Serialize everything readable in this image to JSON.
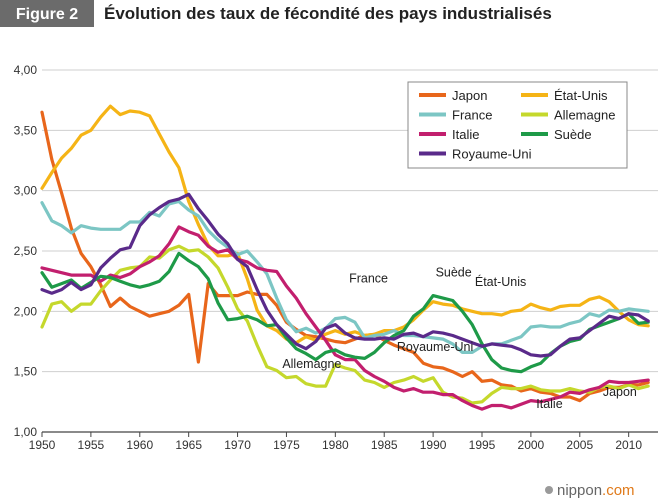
{
  "header": {
    "badge": "Figure 2",
    "title": "Évolution des taux de fécondité des pays industrialisés"
  },
  "source": {
    "logo": "nippon.com",
    "logo_main": "nippon",
    "logo_suffix": ".com"
  },
  "chart_data": {
    "type": "line",
    "title": "Évolution des taux de fécondité des pays industrialisés",
    "xlabel": "",
    "ylabel": "",
    "xlim": [
      1950,
      2013
    ],
    "ylim": [
      1.0,
      4.0
    ],
    "x_ticks": [
      1950,
      1955,
      1960,
      1965,
      1970,
      1975,
      1980,
      1985,
      1990,
      1995,
      2000,
      2005,
      2010
    ],
    "y_ticks": [
      "1,00",
      "1,50",
      "2,00",
      "2,50",
      "3,00",
      "3,50",
      "4,00"
    ],
    "grid": "horizontal",
    "legend_position": "top-right",
    "series": [
      {
        "name": "Japon",
        "color": "#e8661b",
        "x": [
          1950,
          1951,
          1952,
          1953,
          1954,
          1955,
          1956,
          1957,
          1958,
          1959,
          1960,
          1961,
          1962,
          1963,
          1964,
          1965,
          1966,
          1967,
          1968,
          1969,
          1970,
          1971,
          1972,
          1973,
          1974,
          1975,
          1976,
          1977,
          1978,
          1979,
          1980,
          1981,
          1982,
          1983,
          1984,
          1985,
          1986,
          1987,
          1988,
          1989,
          1990,
          1991,
          1992,
          1993,
          1994,
          1995,
          1996,
          1997,
          1998,
          1999,
          2000,
          2001,
          2002,
          2003,
          2004,
          2005,
          2006,
          2007,
          2008,
          2009,
          2010,
          2011,
          2012
        ],
        "y": [
          3.65,
          3.26,
          2.98,
          2.69,
          2.48,
          2.37,
          2.22,
          2.04,
          2.11,
          2.04,
          2.0,
          1.96,
          1.98,
          2.0,
          2.05,
          2.14,
          1.58,
          2.23,
          2.13,
          2.13,
          2.13,
          2.16,
          2.14,
          2.14,
          2.05,
          1.91,
          1.85,
          1.8,
          1.79,
          1.77,
          1.75,
          1.74,
          1.77,
          1.8,
          1.81,
          1.76,
          1.72,
          1.69,
          1.66,
          1.57,
          1.54,
          1.53,
          1.5,
          1.46,
          1.5,
          1.42,
          1.43,
          1.39,
          1.38,
          1.34,
          1.36,
          1.33,
          1.32,
          1.29,
          1.29,
          1.26,
          1.32,
          1.34,
          1.37,
          1.37,
          1.39,
          1.39,
          1.41
        ]
      },
      {
        "name": "État-Unis",
        "color": "#f5b416",
        "x": [
          1950,
          1951,
          1952,
          1953,
          1954,
          1955,
          1956,
          1957,
          1958,
          1959,
          1960,
          1961,
          1962,
          1963,
          1964,
          1965,
          1966,
          1967,
          1968,
          1969,
          1970,
          1971,
          1972,
          1973,
          1974,
          1975,
          1976,
          1977,
          1978,
          1979,
          1980,
          1981,
          1982,
          1983,
          1984,
          1985,
          1986,
          1987,
          1988,
          1989,
          1990,
          1991,
          1992,
          1993,
          1994,
          1995,
          1996,
          1997,
          1998,
          1999,
          2000,
          2001,
          2002,
          2003,
          2004,
          2005,
          2006,
          2007,
          2008,
          2009,
          2010,
          2011,
          2012
        ],
        "y": [
          3.02,
          3.15,
          3.27,
          3.35,
          3.46,
          3.5,
          3.61,
          3.7,
          3.63,
          3.66,
          3.65,
          3.62,
          3.47,
          3.32,
          3.19,
          2.91,
          2.72,
          2.55,
          2.46,
          2.46,
          2.48,
          2.27,
          2.01,
          1.88,
          1.84,
          1.77,
          1.74,
          1.79,
          1.76,
          1.81,
          1.84,
          1.81,
          1.83,
          1.8,
          1.81,
          1.84,
          1.84,
          1.87,
          1.93,
          2.01,
          2.08,
          2.06,
          2.05,
          2.02,
          2.0,
          1.98,
          1.98,
          1.97,
          2.0,
          2.01,
          2.06,
          2.03,
          2.01,
          2.04,
          2.05,
          2.05,
          2.1,
          2.12,
          2.08,
          2.0,
          1.93,
          1.89,
          1.88
        ]
      },
      {
        "name": "France",
        "color": "#7cc6c4",
        "x": [
          1950,
          1951,
          1952,
          1953,
          1954,
          1955,
          1956,
          1957,
          1958,
          1959,
          1960,
          1961,
          1962,
          1963,
          1964,
          1965,
          1966,
          1967,
          1968,
          1969,
          1970,
          1971,
          1972,
          1973,
          1974,
          1975,
          1976,
          1977,
          1978,
          1979,
          1980,
          1981,
          1982,
          1983,
          1984,
          1985,
          1986,
          1987,
          1988,
          1989,
          1990,
          1991,
          1992,
          1993,
          1994,
          1995,
          1996,
          1997,
          1998,
          1999,
          2000,
          2001,
          2002,
          2003,
          2004,
          2005,
          2006,
          2007,
          2008,
          2009,
          2010,
          2011,
          2012
        ],
        "y": [
          2.9,
          2.75,
          2.71,
          2.65,
          2.71,
          2.69,
          2.68,
          2.68,
          2.68,
          2.74,
          2.74,
          2.82,
          2.79,
          2.89,
          2.91,
          2.84,
          2.79,
          2.67,
          2.59,
          2.53,
          2.47,
          2.5,
          2.41,
          2.31,
          2.11,
          1.93,
          1.83,
          1.86,
          1.82,
          1.86,
          1.94,
          1.95,
          1.91,
          1.78,
          1.8,
          1.81,
          1.84,
          1.8,
          1.8,
          1.79,
          1.78,
          1.77,
          1.73,
          1.66,
          1.66,
          1.71,
          1.73,
          1.73,
          1.76,
          1.79,
          1.87,
          1.88,
          1.87,
          1.87,
          1.9,
          1.92,
          1.98,
          1.96,
          2.01,
          2.0,
          2.02,
          2.01,
          2.0
        ]
      },
      {
        "name": "Allemagne",
        "color": "#c5d82c",
        "x": [
          1950,
          1951,
          1952,
          1953,
          1954,
          1955,
          1956,
          1957,
          1958,
          1959,
          1960,
          1961,
          1962,
          1963,
          1964,
          1965,
          1966,
          1967,
          1968,
          1969,
          1970,
          1971,
          1972,
          1973,
          1974,
          1975,
          1976,
          1977,
          1978,
          1979,
          1980,
          1981,
          1982,
          1983,
          1984,
          1985,
          1986,
          1987,
          1988,
          1989,
          1990,
          1991,
          1992,
          1993,
          1994,
          1995,
          1996,
          1997,
          1998,
          1999,
          2000,
          2001,
          2002,
          2003,
          2004,
          2005,
          2006,
          2007,
          2008,
          2009,
          2010,
          2011,
          2012
        ],
        "y": [
          1.87,
          2.06,
          2.08,
          2.0,
          2.06,
          2.06,
          2.17,
          2.26,
          2.34,
          2.36,
          2.37,
          2.45,
          2.44,
          2.51,
          2.54,
          2.5,
          2.51,
          2.45,
          2.36,
          2.2,
          2.02,
          1.92,
          1.72,
          1.54,
          1.51,
          1.45,
          1.46,
          1.4,
          1.38,
          1.38,
          1.56,
          1.53,
          1.51,
          1.43,
          1.41,
          1.37,
          1.41,
          1.43,
          1.46,
          1.42,
          1.45,
          1.33,
          1.29,
          1.28,
          1.24,
          1.25,
          1.32,
          1.37,
          1.36,
          1.36,
          1.38,
          1.35,
          1.34,
          1.34,
          1.36,
          1.34,
          1.33,
          1.37,
          1.38,
          1.36,
          1.39,
          1.36,
          1.38
        ]
      },
      {
        "name": "Italie",
        "color": "#c21f6e",
        "x": [
          1950,
          1951,
          1952,
          1953,
          1954,
          1955,
          1956,
          1957,
          1958,
          1959,
          1960,
          1961,
          1962,
          1963,
          1964,
          1965,
          1966,
          1967,
          1968,
          1969,
          1970,
          1971,
          1972,
          1973,
          1974,
          1975,
          1976,
          1977,
          1978,
          1979,
          1980,
          1981,
          1982,
          1983,
          1984,
          1985,
          1986,
          1987,
          1988,
          1989,
          1990,
          1991,
          1992,
          1993,
          1994,
          1995,
          1996,
          1997,
          1998,
          1999,
          2000,
          2001,
          2002,
          2003,
          2004,
          2005,
          2006,
          2007,
          2008,
          2009,
          2010,
          2011,
          2012
        ],
        "y": [
          2.36,
          2.34,
          2.32,
          2.3,
          2.3,
          2.3,
          2.25,
          2.3,
          2.28,
          2.31,
          2.37,
          2.41,
          2.46,
          2.56,
          2.7,
          2.66,
          2.63,
          2.54,
          2.49,
          2.51,
          2.43,
          2.41,
          2.36,
          2.34,
          2.33,
          2.21,
          2.11,
          1.98,
          1.87,
          1.76,
          1.64,
          1.6,
          1.6,
          1.51,
          1.46,
          1.42,
          1.37,
          1.34,
          1.36,
          1.33,
          1.33,
          1.31,
          1.31,
          1.26,
          1.22,
          1.19,
          1.22,
          1.22,
          1.2,
          1.23,
          1.26,
          1.25,
          1.27,
          1.29,
          1.33,
          1.32,
          1.35,
          1.37,
          1.42,
          1.41,
          1.41,
          1.42,
          1.43
        ]
      },
      {
        "name": "Suède",
        "color": "#1e9a48",
        "x": [
          1950,
          1951,
          1952,
          1953,
          1954,
          1955,
          1956,
          1957,
          1958,
          1959,
          1960,
          1961,
          1962,
          1963,
          1964,
          1965,
          1966,
          1967,
          1968,
          1969,
          1970,
          1971,
          1972,
          1973,
          1974,
          1975,
          1976,
          1977,
          1978,
          1979,
          1980,
          1981,
          1982,
          1983,
          1984,
          1985,
          1986,
          1987,
          1988,
          1989,
          1990,
          1991,
          1992,
          1993,
          1994,
          1995,
          1996,
          1997,
          1998,
          1999,
          2000,
          2001,
          2002,
          2003,
          2004,
          2005,
          2006,
          2007,
          2008,
          2009,
          2010,
          2011,
          2012
        ],
        "y": [
          2.32,
          2.2,
          2.23,
          2.26,
          2.19,
          2.24,
          2.29,
          2.28,
          2.25,
          2.22,
          2.2,
          2.22,
          2.25,
          2.33,
          2.48,
          2.42,
          2.37,
          2.27,
          2.07,
          1.93,
          1.94,
          1.96,
          1.93,
          1.88,
          1.89,
          1.78,
          1.69,
          1.65,
          1.6,
          1.66,
          1.68,
          1.64,
          1.62,
          1.61,
          1.66,
          1.74,
          1.8,
          1.84,
          1.96,
          2.02,
          2.13,
          2.11,
          2.09,
          2.0,
          1.89,
          1.73,
          1.6,
          1.53,
          1.51,
          1.5,
          1.54,
          1.57,
          1.65,
          1.71,
          1.75,
          1.77,
          1.85,
          1.88,
          1.91,
          1.94,
          1.98,
          1.9,
          1.91
        ]
      },
      {
        "name": "Royaume-Uni",
        "color": "#5a2a8a",
        "x": [
          1950,
          1951,
          1952,
          1953,
          1954,
          1955,
          1956,
          1957,
          1958,
          1959,
          1960,
          1961,
          1962,
          1963,
          1964,
          1965,
          1966,
          1967,
          1968,
          1969,
          1970,
          1971,
          1972,
          1973,
          1974,
          1975,
          1976,
          1977,
          1978,
          1979,
          1980,
          1981,
          1982,
          1983,
          1984,
          1985,
          1986,
          1987,
          1988,
          1989,
          1990,
          1991,
          1992,
          1993,
          1994,
          1995,
          1996,
          1997,
          1998,
          1999,
          2000,
          2001,
          2002,
          2003,
          2004,
          2005,
          2006,
          2007,
          2008,
          2009,
          2010,
          2011,
          2012
        ],
        "y": [
          2.18,
          2.15,
          2.18,
          2.24,
          2.18,
          2.22,
          2.36,
          2.44,
          2.51,
          2.53,
          2.71,
          2.8,
          2.86,
          2.91,
          2.93,
          2.97,
          2.85,
          2.75,
          2.64,
          2.56,
          2.43,
          2.37,
          2.18,
          2.01,
          1.89,
          1.81,
          1.73,
          1.69,
          1.75,
          1.86,
          1.89,
          1.82,
          1.78,
          1.77,
          1.77,
          1.78,
          1.77,
          1.81,
          1.82,
          1.79,
          1.83,
          1.82,
          1.8,
          1.77,
          1.74,
          1.71,
          1.73,
          1.72,
          1.71,
          1.68,
          1.64,
          1.63,
          1.64,
          1.71,
          1.77,
          1.78,
          1.84,
          1.9,
          1.96,
          1.94,
          1.98,
          1.97,
          1.92
        ]
      }
    ],
    "annotations": [
      {
        "text": "Suède",
        "x": 1992.1,
        "y": 2.29,
        "series": "Suède"
      },
      {
        "text": "État-Unis",
        "x": 1996.9,
        "y": 2.21,
        "series": "État-Unis"
      },
      {
        "text": "France",
        "x": 1983.4,
        "y": 2.24,
        "series": "France"
      },
      {
        "text": "Allemagne",
        "x": 1977.6,
        "y": 1.53,
        "series": "Allemagne"
      },
      {
        "text": "Royaume-Uni",
        "x": 1990.2,
        "y": 1.67,
        "series": "Royaume-Uni"
      },
      {
        "text": "Italie",
        "x": 2001.9,
        "y": 1.2,
        "series": "Italie"
      },
      {
        "text": "Japon",
        "x": 2009.1,
        "y": 1.3,
        "series": "Japon"
      }
    ]
  }
}
